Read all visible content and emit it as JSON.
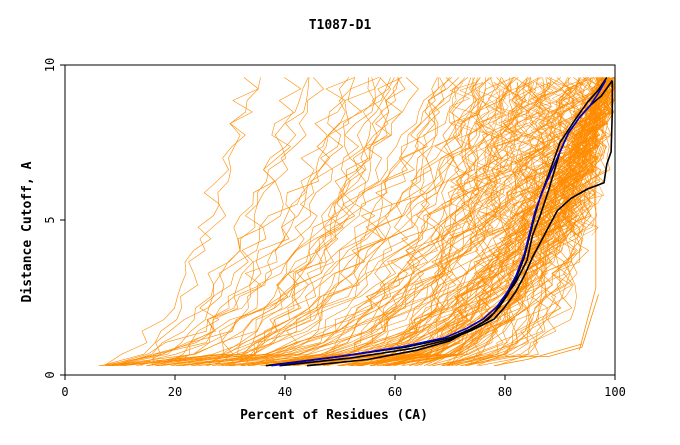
{
  "chart_data": {
    "type": "line",
    "title": "T1087-D1",
    "xlabel": "Percent of Residues (CA)",
    "ylabel": "Distance Cutoff, A",
    "xlim": [
      0,
      100
    ],
    "ylim": [
      0,
      10
    ],
    "xticks": [
      "0",
      "20",
      "40",
      "60",
      "80",
      "100"
    ],
    "yticks": [
      "0",
      "5",
      "10"
    ],
    "grid": false,
    "colors": {
      "background_models": "#ff8c00",
      "highlight_black": "#000000",
      "highlight_blue": "#0000cc",
      "axes": "#000000"
    },
    "background_series_count": 160,
    "series": [
      {
        "color": "#000000",
        "x": [
          36.5,
          50,
          62,
          70,
          74,
          77,
          79,
          80.5,
          82,
          83.5,
          84.5,
          85.5,
          86.5,
          88,
          89,
          90,
          91.5,
          93,
          95,
          97,
          98.5
        ],
        "y": [
          0.3,
          0.6,
          0.9,
          1.2,
          1.5,
          1.8,
          2.2,
          2.6,
          3.1,
          3.8,
          4.5,
          5.2,
          5.8,
          6.5,
          7.0,
          7.5,
          7.9,
          8.3,
          8.8,
          9.2,
          9.6
        ]
      },
      {
        "color": "#000000",
        "x": [
          44,
          55,
          64,
          70,
          73,
          76,
          78,
          80,
          82,
          84,
          85,
          86.5,
          88,
          89,
          90,
          91.5,
          93.5,
          95.5,
          97.5,
          99.5
        ],
        "y": [
          0.3,
          0.5,
          0.8,
          1.1,
          1.4,
          1.7,
          2.0,
          2.5,
          3.0,
          3.7,
          4.5,
          5.2,
          6.0,
          6.6,
          7.2,
          7.8,
          8.3,
          8.7,
          9.0,
          9.5
        ]
      },
      {
        "color": "#000000",
        "x": [
          39,
          52,
          63,
          70,
          74,
          78,
          80,
          82,
          83.5,
          85,
          86.5,
          88,
          89.5,
          92,
          95,
          98,
          98.5,
          99.3,
          99.5,
          99.5
        ],
        "y": [
          0.3,
          0.55,
          0.85,
          1.15,
          1.45,
          1.8,
          2.2,
          2.7,
          3.2,
          3.8,
          4.3,
          4.8,
          5.3,
          5.7,
          6.0,
          6.2,
          6.8,
          7.2,
          8.5,
          9.5
        ]
      },
      {
        "color": "#0000cc",
        "x": [
          37.5,
          50,
          61,
          69,
          73,
          76,
          78.5,
          80.5,
          82,
          83.5,
          84.5,
          85.5,
          87,
          88.5,
          90,
          91.5,
          93.5,
          95.5,
          97,
          98.3
        ],
        "y": [
          0.3,
          0.6,
          0.9,
          1.2,
          1.5,
          1.8,
          2.2,
          2.7,
          3.2,
          3.9,
          4.6,
          5.3,
          6.0,
          6.6,
          7.2,
          7.8,
          8.3,
          8.7,
          9.1,
          9.5
        ]
      }
    ]
  }
}
